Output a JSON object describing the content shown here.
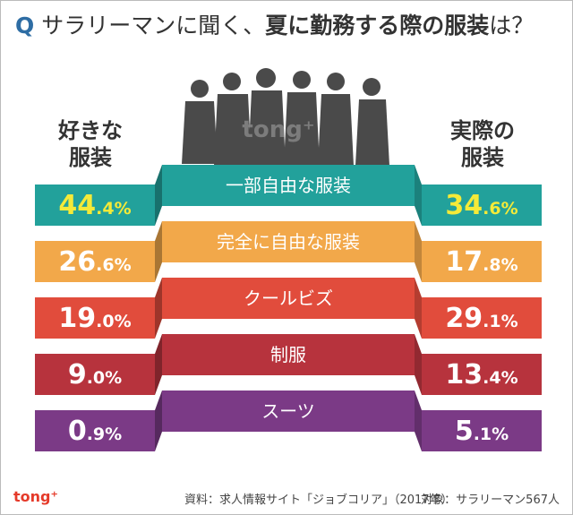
{
  "chart_data": {
    "type": "ribbon",
    "title_prefix": "Q",
    "title_parts": [
      "サラリーマンに聞く、",
      "夏に勤務する際の服装",
      "は？"
    ],
    "categories": [
      "一部自由な服装",
      "完全に自由な服装",
      "クールビズ",
      "制服",
      "スーツ"
    ],
    "category_colors": [
      "#22a19b",
      "#f2a84a",
      "#e14c3c",
      "#b7333d",
      "#7b3a86"
    ],
    "highlight_color": "#f4ea38",
    "highlight_index": 0,
    "series": [
      {
        "name": "好きな服装",
        "values": [
          44.4,
          26.6,
          19.0,
          9.0,
          0.9
        ],
        "value_labels": [
          "44.4%",
          "26.6%",
          "19.0%",
          "9.0%",
          "0.9%"
        ]
      },
      {
        "name": "実際の服装",
        "values": [
          34.6,
          17.8,
          29.1,
          13.4,
          5.1
        ],
        "value_labels": [
          "34.6%",
          "17.8%",
          "29.1%",
          "13.4%",
          "5.1%"
        ]
      }
    ],
    "source": "資料：求人情報サイト「ジョブコリア」（2017年）",
    "target": "対象：サラリーマン567人",
    "logo": "tong⁺",
    "watermark": "tong⁺"
  }
}
